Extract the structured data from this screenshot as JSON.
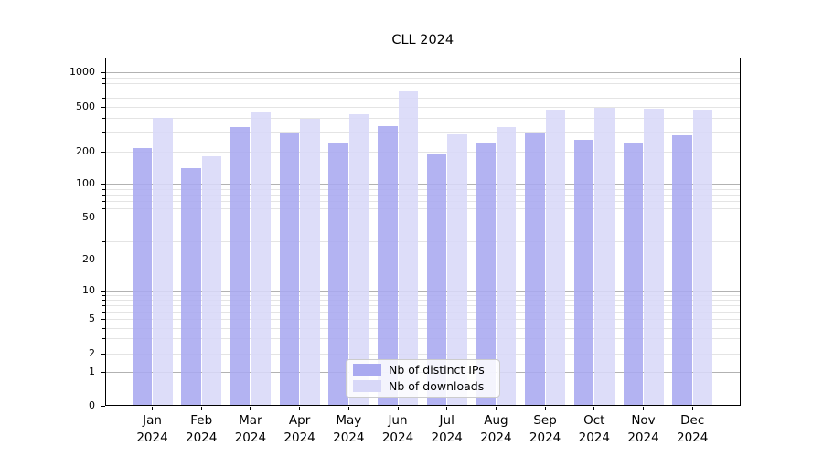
{
  "chart_data": {
    "type": "bar",
    "title": "CLL 2024",
    "categories": [
      "Jan 2024",
      "Feb 2024",
      "Mar 2024",
      "Apr 2024",
      "May 2024",
      "Jun 2024",
      "Jul 2024",
      "Aug 2024",
      "Sep 2024",
      "Oct 2024",
      "Nov 2024",
      "Dec 2024"
    ],
    "category_month_lines": [
      "Jan",
      "Feb",
      "Mar",
      "Apr",
      "May",
      "Jun",
      "Jul",
      "Aug",
      "Sep",
      "Oct",
      "Nov",
      "Dec"
    ],
    "category_year_line": "2024",
    "series": [
      {
        "name": "Nb of distinct IPs",
        "color": "#a9a9f0",
        "values": [
          215,
          139,
          327,
          289,
          237,
          333,
          186,
          236,
          288,
          254,
          240,
          277
        ]
      },
      {
        "name": "Nb of downloads",
        "color": "#d8d8f8",
        "values": [
          400,
          180,
          442,
          390,
          430,
          680,
          284,
          332,
          471,
          489,
          479,
          468
        ]
      }
    ],
    "y_axis": {
      "scale": "symlog",
      "tick_labels": [
        "0",
        "1",
        "2",
        "5",
        "10",
        "20",
        "50",
        "100",
        "200",
        "500",
        "1000"
      ],
      "range": [
        0,
        1300
      ]
    },
    "x_axis": {
      "tick_labels_two_lines": true
    },
    "grid": "on",
    "legend": {
      "position": "lower center",
      "entries": [
        "Nb of distinct IPs",
        "Nb of downloads"
      ]
    }
  },
  "colors": {
    "background": "#ffffff",
    "grid_minor": "#e4e4e4",
    "grid_major": "#b2b2b2",
    "axis_spine": "#000000",
    "text": "#000000",
    "bar_distinct_ips": "#a9a9f0",
    "bar_downloads": "#d8d8f8"
  }
}
